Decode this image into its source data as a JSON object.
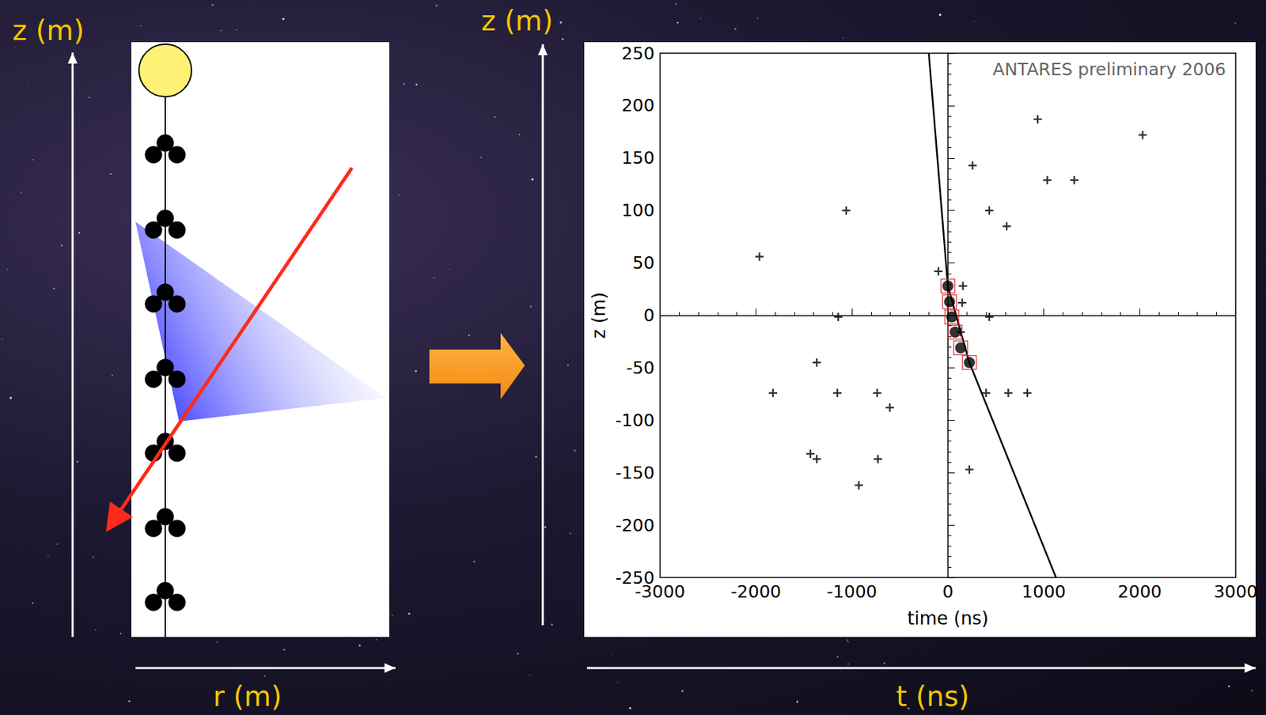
{
  "diagram": {
    "left_axis_label": "z (m)",
    "bottom_left_label": "r (m)",
    "middle_axis_label": "z (m)",
    "bottom_right_label": "t (ns)"
  },
  "chart_data": {
    "type": "scatter",
    "title": "ANTARES preliminary 2006",
    "x_label": "time (ns)",
    "y_label": "z (m)",
    "xlim": [
      -3000,
      3000
    ],
    "xticks": [
      -3000,
      -2000,
      -1000,
      0,
      1000,
      2000,
      3000
    ],
    "ylim": [
      -250,
      250
    ],
    "yticks": [
      -250,
      -200,
      -150,
      -100,
      -50,
      0,
      50,
      100,
      150,
      200,
      250
    ],
    "grid": false,
    "series": [
      {
        "type": "line",
        "color": "#000000",
        "line_style": "solid",
        "x": [
          -199,
          0,
          224,
          1127
        ],
        "values": [
          250,
          28,
          -45,
          -250
        ]
      },
      {
        "type": "scatter",
        "marker": "cross",
        "color": "#000000",
        "x": [
          936,
          2030,
          257,
          1036,
          1317,
          -1060,
          431,
          613,
          -1964,
          -99,
          157,
          149,
          133,
          -1143,
          431,
          -1367,
          -1823,
          -1152,
          -737,
          398,
          630,
          828,
          -605,
          -1433,
          -1367,
          -729,
          224,
          -928
        ],
        "values": [
          187,
          172,
          143,
          129,
          129,
          100,
          100,
          85,
          56,
          42,
          28,
          12,
          -16,
          -1.5,
          -1.5,
          -45,
          -74,
          -74,
          -74,
          -74,
          -74,
          -74,
          -88,
          -132,
          -137,
          -137,
          -147,
          -162
        ]
      },
      {
        "type": "scatter",
        "marker": "circle_in_square",
        "color": "#000000",
        "x": [
          0,
          17,
          41,
          75,
          133,
          224
        ],
        "values": [
          28,
          13,
          -1.5,
          -16,
          -31,
          -45
        ]
      }
    ]
  }
}
